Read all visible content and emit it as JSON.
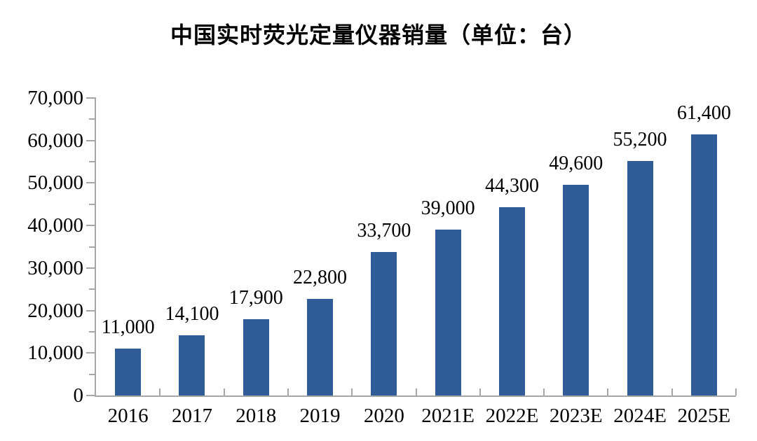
{
  "title": "中国实时荧光定量仪器销量（单位：台）",
  "chart_data": {
    "type": "bar",
    "title": "中国实时荧光定量仪器销量（单位：台）",
    "unit_label": "台",
    "categories": [
      "2016",
      "2017",
      "2018",
      "2019",
      "2020",
      "2021E",
      "2022E",
      "2023E",
      "2024E",
      "2025E"
    ],
    "values": [
      11000,
      14100,
      17900,
      22800,
      33700,
      39000,
      44300,
      49600,
      55200,
      61400
    ],
    "value_labels": [
      "11,000",
      "14,100",
      "17,900",
      "22,800",
      "33,700",
      "39,000",
      "44,300",
      "49,600",
      "55,200",
      "61,400"
    ],
    "xlabel": "",
    "ylabel": "",
    "ylim": [
      0,
      70000
    ],
    "ytick_interval": 10000,
    "ytick_minor_interval": 5000,
    "ytick_labels": [
      "0",
      "10,000",
      "20,000",
      "30,000",
      "40,000",
      "50,000",
      "60,000",
      "70,000"
    ],
    "grid": false,
    "legend_position": "none",
    "bar_color": "#2F5B97",
    "axis_color": "#A6A6A6",
    "text_color": "#000000",
    "background_color": "#FFFFFF"
  }
}
